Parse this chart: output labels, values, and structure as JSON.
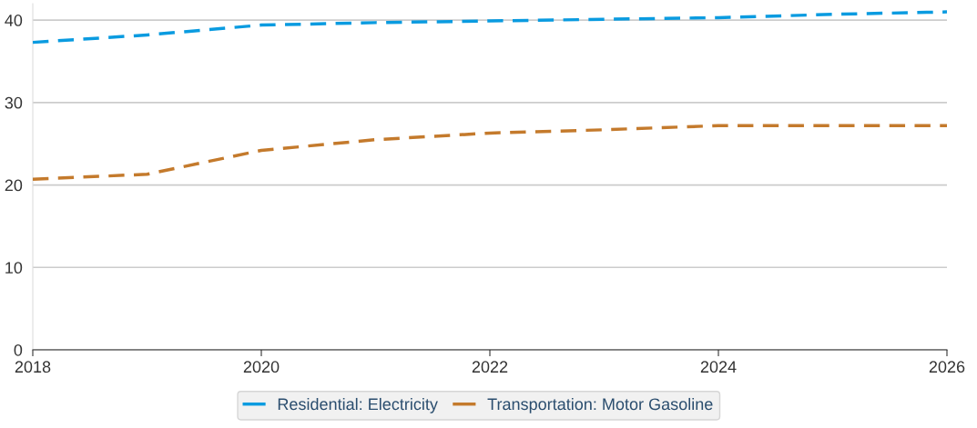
{
  "chart_data": {
    "type": "line",
    "x": [
      2018,
      2019,
      2020,
      2021,
      2022,
      2023,
      2024,
      2025,
      2026
    ],
    "series": [
      {
        "name": "Residential: Electricity",
        "color": "#0a9be0",
        "values": [
          37.3,
          38.2,
          39.4,
          39.7,
          39.9,
          40.1,
          40.3,
          40.7,
          41.0
        ]
      },
      {
        "name": "Transportation: Motor Gasoline",
        "color": "#c47a2c",
        "values": [
          20.7,
          21.3,
          24.2,
          25.5,
          26.3,
          26.7,
          27.2,
          27.2,
          27.2
        ]
      }
    ],
    "xlim": [
      2018,
      2026
    ],
    "xticks": [
      2018,
      2020,
      2022,
      2024,
      2026
    ],
    "ylim": [
      0,
      42
    ],
    "yticks": [
      0,
      10,
      20,
      30,
      40
    ],
    "grid": "y",
    "legend": "bottom",
    "line_style": "dashed",
    "marker": "none"
  }
}
